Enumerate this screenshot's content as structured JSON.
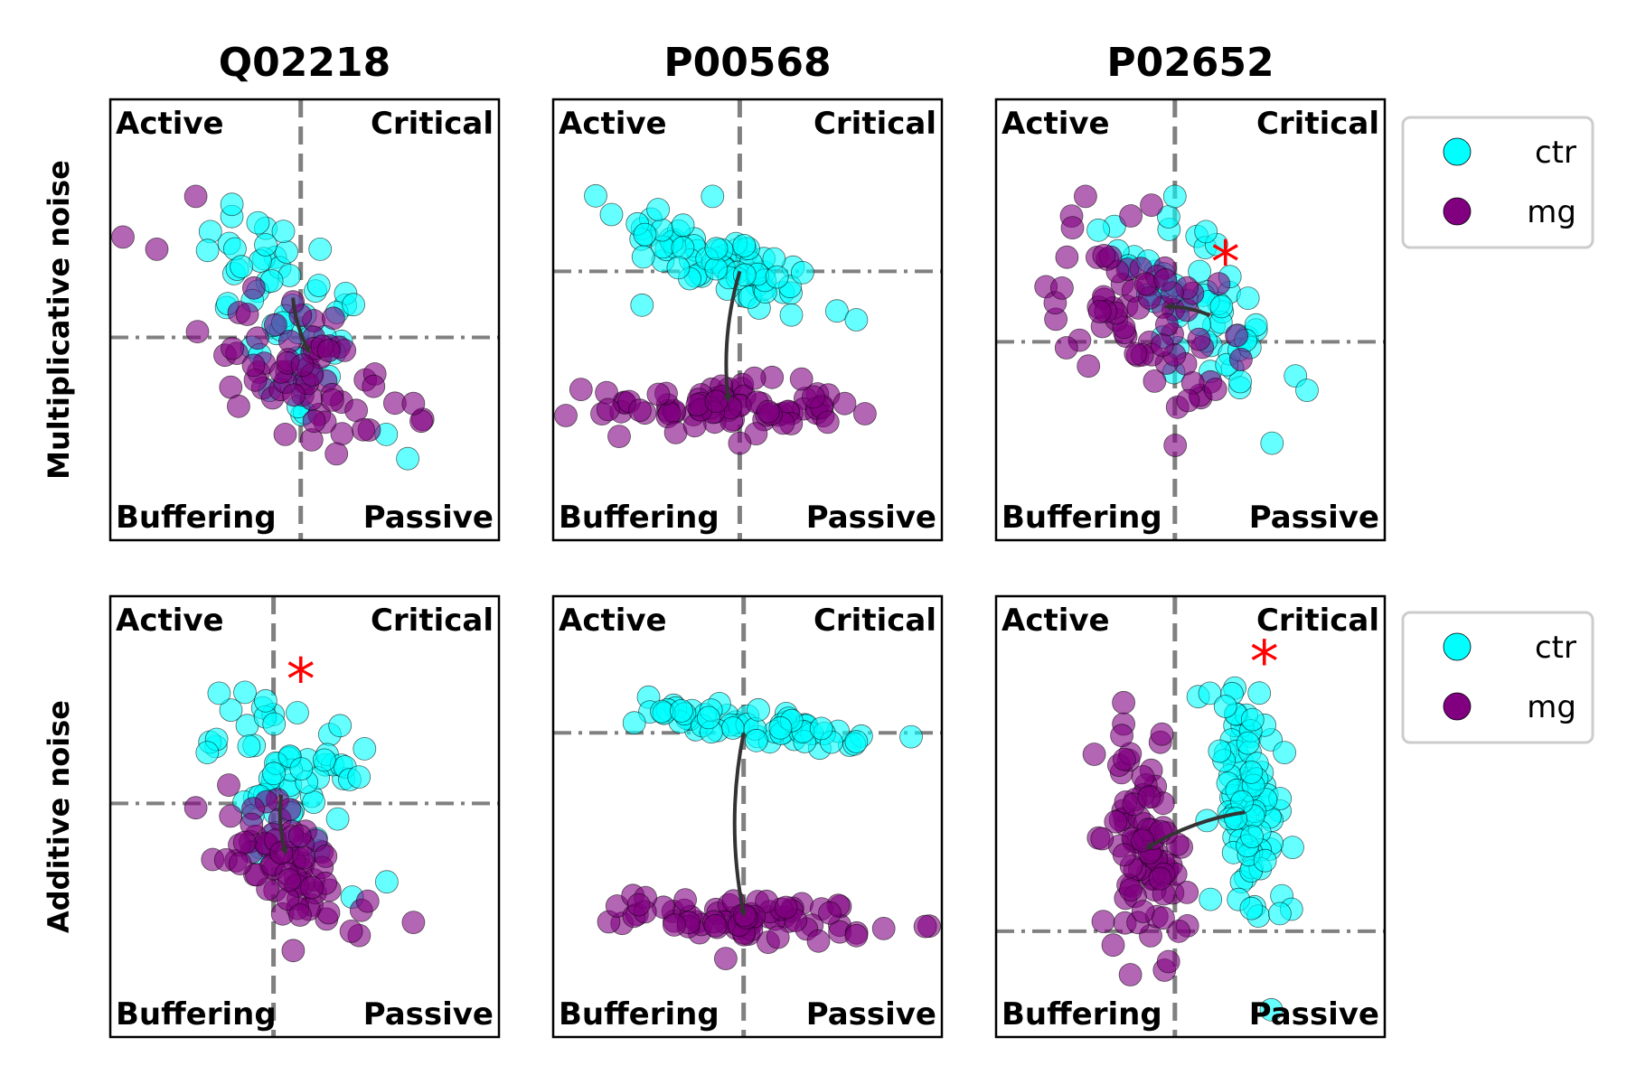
{
  "colors": {
    "ctr": "#00ffff",
    "mg": "#800080",
    "guides": "#808080",
    "arrow": "#333333",
    "star": "#ff0000"
  },
  "labels": {
    "quadrants": {
      "top_left": "Active",
      "top_right": "Critical",
      "bottom_left": "Buffering",
      "bottom_right": "Passive"
    },
    "star": "*"
  },
  "chart_data": [
    {
      "type": "scatter",
      "title": "Q02218",
      "row_label": "Multiplicative noise",
      "xlim": [
        0,
        1
      ],
      "ylim": [
        0,
        1
      ],
      "vline": 0.49,
      "hline": 0.46,
      "annotation": "",
      "series": [
        {
          "name": "ctr",
          "cloud": {
            "cx": 0.46,
            "cy": 0.5,
            "sx": 0.11,
            "sy": 0.14,
            "rho": -0.6,
            "n": 55
          },
          "extra": [
            [
              0.38,
              0.72
            ],
            [
              0.4,
              0.67
            ],
            [
              0.54,
              0.66
            ],
            [
              0.71,
              0.24
            ],
            [
              0.41,
              0.34
            ]
          ]
        },
        {
          "name": "mg",
          "cloud": {
            "cx": 0.48,
            "cy": 0.4,
            "sx": 0.14,
            "sy": 0.11,
            "rho": -0.55,
            "n": 65
          },
          "extra": [
            [
              0.22,
              0.78
            ],
            [
              0.45,
              0.24
            ],
            [
              0.8,
              0.27
            ],
            [
              0.78,
              0.31
            ]
          ]
        }
      ],
      "arrow": {
        "from": [
          0.47,
          0.55
        ],
        "to": [
          0.51,
          0.43
        ],
        "bend": 0.05
      }
    },
    {
      "type": "scatter",
      "title": "P00568",
      "row_label": "",
      "xlim": [
        0,
        1
      ],
      "ylim": [
        0,
        1
      ],
      "vline": 0.48,
      "hline": 0.61,
      "annotation": "",
      "series": [
        {
          "name": "ctr",
          "cloud": {
            "cx": 0.43,
            "cy": 0.63,
            "sx": 0.13,
            "sy": 0.06,
            "rho": -0.75,
            "n": 75
          },
          "extra": [
            [
              0.27,
              0.75
            ],
            [
              0.41,
              0.78
            ],
            [
              0.73,
              0.52
            ],
            [
              0.78,
              0.5
            ]
          ]
        },
        {
          "name": "mg",
          "cloud": {
            "cx": 0.42,
            "cy": 0.3,
            "sx": 0.16,
            "sy": 0.03,
            "rho": -0.1,
            "n": 80
          },
          "extra": [
            [
              0.75,
              0.31
            ],
            [
              0.48,
              0.22
            ]
          ]
        }
      ],
      "arrow": {
        "from": [
          0.48,
          0.61
        ],
        "to": [
          0.45,
          0.32
        ],
        "bend": 0.05
      }
    },
    {
      "type": "scatter",
      "title": "P02652",
      "row_label": "",
      "xlim": [
        0,
        1
      ],
      "ylim": [
        0,
        1
      ],
      "vline": 0.46,
      "hline": 0.45,
      "annotation": "*",
      "annotation_xy": [
        0.59,
        0.63
      ],
      "series": [
        {
          "name": "ctr",
          "cloud": {
            "cx": 0.54,
            "cy": 0.52,
            "sx": 0.11,
            "sy": 0.11,
            "rho": -0.65,
            "n": 55
          },
          "extra": [
            [
              0.46,
              0.78
            ],
            [
              0.54,
              0.7
            ],
            [
              0.8,
              0.34
            ],
            [
              0.71,
              0.22
            ],
            [
              0.58,
              0.53
            ]
          ]
        },
        {
          "name": "mg",
          "cloud": {
            "cx": 0.36,
            "cy": 0.51,
            "sx": 0.11,
            "sy": 0.1,
            "rho": -0.5,
            "n": 70
          },
          "extra": [
            [
              0.23,
              0.78
            ],
            [
              0.4,
              0.76
            ],
            [
              0.63,
              0.41
            ]
          ]
        }
      ],
      "arrow": {
        "from": [
          0.55,
          0.51
        ],
        "to": [
          0.44,
          0.53
        ],
        "bend": 0.05
      }
    },
    {
      "type": "scatter",
      "title": "",
      "row_label": "Additive noise",
      "xlim": [
        0,
        1
      ],
      "ylim": [
        0,
        1
      ],
      "vline": 0.42,
      "hline": 0.53,
      "annotation": "*",
      "annotation_xy": [
        0.49,
        0.81
      ],
      "series": [
        {
          "name": "ctr",
          "cloud": {
            "cx": 0.46,
            "cy": 0.59,
            "sx": 0.09,
            "sy": 0.1,
            "rho": -0.5,
            "n": 60
          },
          "extra": [
            [
              0.28,
              0.78
            ],
            [
              0.64,
              0.59
            ],
            [
              0.53,
              0.45
            ]
          ]
        },
        {
          "name": "mg",
          "cloud": {
            "cx": 0.47,
            "cy": 0.38,
            "sx": 0.1,
            "sy": 0.08,
            "rho": -0.55,
            "n": 70
          },
          "extra": [
            [
              0.22,
              0.52
            ],
            [
              0.78,
              0.26
            ],
            [
              0.62,
              0.24
            ]
          ]
        }
      ],
      "arrow": {
        "from": [
          0.44,
          0.55
        ],
        "to": [
          0.45,
          0.42
        ],
        "bend": 0.05
      }
    },
    {
      "type": "scatter",
      "title": "",
      "row_label": "",
      "xlim": [
        0,
        1
      ],
      "ylim": [
        0,
        1
      ],
      "vline": 0.49,
      "hline": 0.69,
      "annotation": "",
      "series": [
        {
          "name": "ctr",
          "cloud": {
            "cx": 0.5,
            "cy": 0.71,
            "sx": 0.14,
            "sy": 0.025,
            "rho": -0.7,
            "n": 60
          },
          "extra": [
            [
              0.78,
              0.67
            ],
            [
              0.69,
              0.7
            ],
            [
              0.33,
              0.74
            ]
          ]
        },
        {
          "name": "mg",
          "cloud": {
            "cx": 0.52,
            "cy": 0.27,
            "sx": 0.15,
            "sy": 0.025,
            "rho": -0.2,
            "n": 75
          },
          "extra": [
            [
              0.22,
              0.3
            ],
            [
              0.78,
              0.23
            ]
          ]
        }
      ],
      "arrow": {
        "from": [
          0.49,
          0.69
        ],
        "to": [
          0.49,
          0.28
        ],
        "bend": 0.05
      }
    },
    {
      "type": "scatter",
      "title": "",
      "row_label": "",
      "xlim": [
        0,
        1
      ],
      "ylim": [
        0,
        1
      ],
      "vline": 0.46,
      "hline": 0.24,
      "annotation": "*",
      "annotation_xy": [
        0.69,
        0.85
      ],
      "series": [
        {
          "name": "ctr",
          "cloud": {
            "cx": 0.64,
            "cy": 0.52,
            "sx": 0.05,
            "sy": 0.14,
            "rho": -0.3,
            "n": 85
          },
          "extra": [
            [
              0.55,
              0.78
            ],
            [
              0.59,
              0.75
            ],
            [
              0.66,
              0.72
            ],
            [
              0.76,
              0.29
            ],
            [
              0.73,
              0.28
            ]
          ]
        },
        {
          "name": "mg",
          "cloud": {
            "cx": 0.38,
            "cy": 0.42,
            "sx": 0.05,
            "sy": 0.13,
            "rho": -0.3,
            "n": 85
          },
          "extra": [
            [
              0.33,
              0.63
            ],
            [
              0.47,
              0.24
            ],
            [
              0.43,
              0.27
            ]
          ]
        }
      ],
      "arrow": {
        "from": [
          0.64,
          0.51
        ],
        "to": [
          0.39,
          0.43
        ],
        "bend": 0.05
      }
    }
  ],
  "legends": [
    {
      "items": [
        {
          "series": "ctr",
          "label": "ctr"
        },
        {
          "series": "mg",
          "label": "mg"
        }
      ]
    },
    {
      "items": [
        {
          "series": "ctr",
          "label": "ctr"
        },
        {
          "series": "mg",
          "label": "mg"
        }
      ]
    }
  ]
}
